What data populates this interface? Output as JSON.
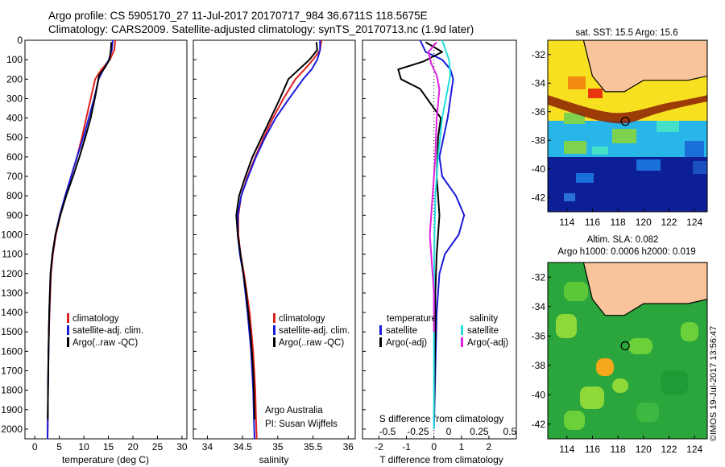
{
  "header": {
    "line1": "Argo profile: CS 5905170_27 11-Jul-2017 20170717_984 36.6711S 118.5675E",
    "line2": "Climatology: CARS2009. Satellite-adjusted climatology: synTS_20170713.nc (1.9d later)"
  },
  "side_text": "©IMOS 19-Jul-2017 13:56:47",
  "colors": {
    "climatology": "#e02020",
    "satellite": "#1a1adc",
    "argo": "#000000",
    "sat_salinity": "#22dede",
    "argo_salinity": "#e020e0",
    "land": "#f9c49c"
  },
  "chart_data": [
    {
      "type": "line",
      "id": "temperature",
      "xlabel": "temperature (deg C)",
      "xlim": [
        -2,
        31
      ],
      "ylim": [
        2050,
        0
      ],
      "xticks": [
        "0",
        "5",
        "10",
        "15",
        "20",
        "25",
        "30"
      ],
      "yticks": [
        "0",
        "100",
        "200",
        "300",
        "400",
        "500",
        "600",
        "700",
        "800",
        "900",
        "1000",
        "1100",
        "1200",
        "1300",
        "1400",
        "1500",
        "1600",
        "1700",
        "1800",
        "1900",
        "2000"
      ],
      "legend": [
        "climatology",
        "satellite-adj. clim.",
        "Argo(..raw -QC)"
      ],
      "series": [
        {
          "name": "climatology",
          "color": "climatology",
          "x": [
            16.4,
            16.2,
            15.3,
            13.6,
            12.3,
            11.4,
            10.5,
            9.6,
            8.6,
            7.4,
            6.3,
            5.2,
            4.3,
            3.7,
            3.3,
            3.0,
            2.8,
            2.7,
            2.65,
            2.6
          ],
          "y": [
            0,
            50,
            100,
            150,
            200,
            300,
            400,
            500,
            600,
            700,
            800,
            900,
            1000,
            1100,
            1200,
            1400,
            1600,
            1800,
            1950,
            2050
          ]
        },
        {
          "name": "satellite-adj. clim.",
          "color": "satellite",
          "x": [
            15.9,
            15.7,
            15.1,
            14.0,
            13.0,
            12.1,
            11.0,
            9.9,
            8.6,
            7.4,
            6.2,
            5.1,
            4.2,
            3.6,
            3.2,
            2.95,
            2.8,
            2.7,
            2.65,
            2.6
          ],
          "y": [
            0,
            50,
            100,
            150,
            200,
            300,
            400,
            500,
            600,
            700,
            800,
            900,
            1000,
            1100,
            1200,
            1400,
            1600,
            1800,
            1950,
            2050
          ]
        },
        {
          "name": "Argo(..raw -QC)",
          "color": "argo",
          "x": [
            15.6,
            15.5,
            15.2,
            14.3,
            13.1,
            12.4,
            11.4,
            10.3,
            9.1,
            7.8,
            6.4,
            5.2,
            4.2,
            3.6,
            3.2,
            2.95,
            2.8,
            2.7,
            2.65
          ],
          "y": [
            10,
            50,
            100,
            140,
            180,
            280,
            400,
            500,
            600,
            700,
            800,
            900,
            1000,
            1100,
            1200,
            1400,
            1600,
            1800,
            1950
          ]
        }
      ]
    },
    {
      "type": "line",
      "id": "salinity",
      "xlabel": "salinity",
      "xlim": [
        33.8,
        36.1
      ],
      "ylim": [
        2050,
        0
      ],
      "xticks": [
        "34",
        "34.5",
        "35",
        "35.5",
        "36"
      ],
      "legend": [
        "climatology",
        "satellite-adj. clim.",
        "Argo(..raw -QC)"
      ],
      "annotation": [
        "Argo Australia",
        "PI: Susan Wijffels"
      ],
      "series": [
        {
          "name": "climatology",
          "color": "climatology",
          "x": [
            35.62,
            35.6,
            35.5,
            35.38,
            35.25,
            35.08,
            34.93,
            34.8,
            34.68,
            34.57,
            34.48,
            34.44,
            34.44,
            34.47,
            34.52,
            34.6,
            34.65,
            34.68,
            34.69,
            34.7
          ],
          "y": [
            0,
            50,
            100,
            150,
            200,
            300,
            400,
            500,
            600,
            700,
            800,
            900,
            1000,
            1100,
            1200,
            1400,
            1600,
            1800,
            1950,
            2050
          ]
        },
        {
          "name": "satellite-adj. clim.",
          "color": "satellite",
          "x": [
            35.6,
            35.6,
            35.56,
            35.48,
            35.36,
            35.16,
            34.97,
            34.82,
            34.69,
            34.58,
            34.48,
            34.43,
            34.43,
            34.46,
            34.51,
            34.57,
            34.62,
            34.65,
            34.66,
            34.67
          ],
          "y": [
            0,
            50,
            100,
            150,
            200,
            300,
            400,
            500,
            600,
            700,
            800,
            900,
            1000,
            1100,
            1200,
            1400,
            1600,
            1800,
            1950,
            2050
          ]
        },
        {
          "name": "Argo(..raw -QC)",
          "color": "argo",
          "x": [
            35.55,
            35.56,
            35.45,
            35.3,
            35.15,
            35.03,
            34.9,
            34.77,
            34.64,
            34.54,
            34.45,
            34.41,
            34.43,
            34.47,
            34.55,
            34.61,
            34.65,
            34.67
          ],
          "y": [
            10,
            50,
            100,
            150,
            200,
            300,
            400,
            500,
            600,
            700,
            800,
            900,
            1000,
            1100,
            1300,
            1500,
            1700,
            1950
          ]
        }
      ]
    },
    {
      "type": "line",
      "id": "difference",
      "xlabel": "T difference from climatology",
      "xlabel_top": "S difference from climatology",
      "xlim": [
        -2.6,
        3.0
      ],
      "ylim": [
        2050,
        0
      ],
      "xticks": [
        "-2",
        "-1",
        "0",
        "1",
        "2"
      ],
      "xticks_top": [
        "-0.5",
        "-0.25",
        "0",
        "0.25",
        "0.5"
      ],
      "legend_left": [
        "temperature",
        "satellite",
        "Argo(-adj)"
      ],
      "legend_right": [
        "salinity",
        "satellite",
        "Argo(-adj)"
      ],
      "series": [
        {
          "name": "satellite",
          "group": "temperature",
          "color": "satellite",
          "x": [
            -0.5,
            -0.3,
            0.3,
            0.6,
            0.7,
            0.6,
            0.5,
            0.35,
            0.2,
            0.3,
            0.8,
            1.1,
            0.9,
            0.4,
            0.2,
            0.1,
            0.05,
            0.0
          ],
          "y": [
            0,
            60,
            100,
            150,
            200,
            300,
            400,
            500,
            600,
            700,
            800,
            900,
            1000,
            1100,
            1200,
            1400,
            1700,
            2000
          ]
        },
        {
          "name": "Argo(-adj)",
          "group": "temperature",
          "color": "argo",
          "x": [
            -0.3,
            0.3,
            -0.4,
            -1.3,
            -1.2,
            -0.5,
            0.0,
            0.25,
            0.15,
            0.1,
            0.2,
            0.15,
            0.1,
            0.05,
            0.05,
            0.0
          ],
          "y": [
            10,
            60,
            110,
            150,
            200,
            250,
            350,
            400,
            500,
            700,
            900,
            1000,
            1100,
            1300,
            1500,
            1950
          ]
        },
        {
          "name": "satellite",
          "group": "salinity",
          "color": "sat_salinity",
          "x": [
            0.3,
            0.45,
            0.55,
            0.6,
            0.5,
            0.3,
            0.15,
            0.05,
            0.02,
            0.0,
            0.0,
            0.0
          ],
          "y": [
            0,
            60,
            100,
            180,
            250,
            400,
            600,
            800,
            1000,
            1300,
            1600,
            2000
          ]
        },
        {
          "name": "Argo(-adj)",
          "group": "salinity",
          "color": "argo_salinity",
          "x": [
            0.1,
            -0.2,
            -0.1,
            0.1,
            0.2,
            0.1,
            0.05,
            -0.05,
            -0.15,
            -0.1,
            0.0,
            0.0
          ],
          "y": [
            10,
            60,
            120,
            180,
            250,
            400,
            600,
            800,
            1000,
            1100,
            1300,
            1500
          ]
        }
      ]
    },
    {
      "type": "heatmap",
      "id": "sst-map",
      "title": "sat. SST: 15.5  Argo: 15.6",
      "xticks": [
        "114",
        "116",
        "118",
        "120",
        "122",
        "124"
      ],
      "yticks": [
        "-32",
        "-34",
        "-36",
        "-38",
        "-40",
        "-42"
      ],
      "xlim": [
        112.5,
        125
      ],
      "ylim": [
        -43,
        -31
      ],
      "argo_position": [
        118.57,
        -36.67
      ],
      "land_polygon_lonlat": [
        [
          115.3,
          -31
        ],
        [
          116,
          -33.5
        ],
        [
          117,
          -34.6
        ],
        [
          118.5,
          -34.6
        ],
        [
          120,
          -33.8
        ],
        [
          122,
          -33.8
        ],
        [
          123.5,
          -33.8
        ],
        [
          125,
          -33.5
        ],
        [
          125,
          -31
        ]
      ]
    },
    {
      "type": "heatmap",
      "id": "sla-map",
      "title": "Altim. SLA: 0.082",
      "subtitle": "Argo h1000: 0.0006  h2000: 0.019",
      "xticks": [
        "114",
        "116",
        "118",
        "120",
        "122",
        "124"
      ],
      "yticks": [
        "-32",
        "-34",
        "-36",
        "-38",
        "-40",
        "-42"
      ],
      "xlim": [
        112.5,
        125
      ],
      "ylim": [
        -43,
        -31
      ],
      "argo_position": [
        118.57,
        -36.67
      ],
      "land_polygon_lonlat": [
        [
          115.3,
          -31
        ],
        [
          116,
          -33.5
        ],
        [
          117,
          -34.6
        ],
        [
          118.5,
          -34.6
        ],
        [
          120,
          -33.8
        ],
        [
          122,
          -33.8
        ],
        [
          123.5,
          -33.8
        ],
        [
          125,
          -33.5
        ],
        [
          125,
          -31
        ]
      ]
    }
  ]
}
